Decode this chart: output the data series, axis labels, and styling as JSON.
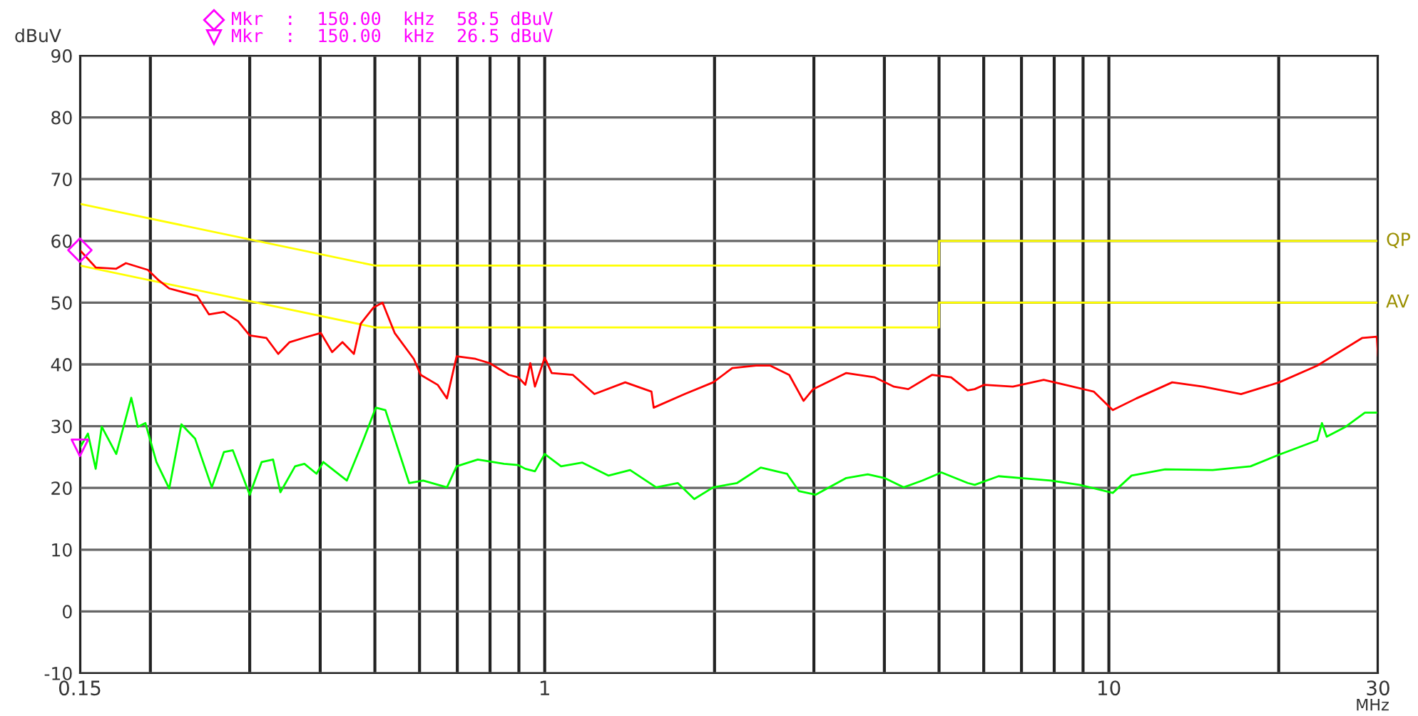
{
  "chart_data": {
    "type": "line",
    "xlabel": "MHz",
    "ylabel": "dBuV",
    "log": "x",
    "grid": true,
    "xlim": [
      0.15,
      30
    ],
    "ylim": [
      -10,
      90
    ],
    "xticks": [
      {
        "value": 0.15,
        "label": "0.15"
      },
      {
        "value": 0.2,
        "label": null
      },
      {
        "value": 0.3,
        "label": null
      },
      {
        "value": 0.4,
        "label": null
      },
      {
        "value": 0.5,
        "label": null
      },
      {
        "value": 0.6,
        "label": null
      },
      {
        "value": 0.7,
        "label": null
      },
      {
        "value": 0.8,
        "label": null
      },
      {
        "value": 0.9,
        "label": null
      },
      1,
      {
        "value": 2,
        "label": null
      },
      {
        "value": 3,
        "label": null
      },
      {
        "value": 4,
        "label": null
      },
      {
        "value": 5,
        "label": null
      },
      {
        "value": 6,
        "label": null
      },
      {
        "value": 7,
        "label": null
      },
      {
        "value": 8,
        "label": null
      },
      {
        "value": 9,
        "label": null
      },
      10,
      {
        "value": 20,
        "label": null
      },
      30
    ],
    "yticks": [
      -10,
      0,
      10,
      20,
      30,
      40,
      50,
      60,
      70,
      80,
      90
    ],
    "annotations": [
      "Mkr  :  150.00  kHz  58.5 dBuV",
      "Mkr  :  150.00  kHz  26.5 dBuV"
    ],
    "series": [
      {
        "name": "QP",
        "color": "#ffff00",
        "x": [
          0.15,
          0.5,
          5,
          5,
          30
        ],
        "values": [
          66,
          56,
          56,
          60,
          60
        ]
      },
      {
        "name": "AV",
        "color": "#ffff00",
        "x": [
          0.15,
          0.5,
          5,
          5,
          30
        ],
        "values": [
          56,
          46,
          46,
          50,
          50
        ]
      },
      {
        "color": "#ff0000",
        "x": [
          0.15,
          0.16,
          0.174,
          0.181,
          0.198,
          0.207,
          0.216,
          0.242,
          0.254,
          0.27,
          0.286,
          0.3,
          0.321,
          0.337,
          0.353,
          0.374,
          0.401,
          0.42,
          0.438,
          0.459,
          0.472,
          0.497,
          0.516,
          0.542,
          0.586,
          0.603,
          0.646,
          0.671,
          0.698,
          0.754,
          0.799,
          0.864,
          0.898,
          0.924,
          0.943,
          0.961,
          1.0,
          1.029,
          1.122,
          1.225,
          1.389,
          1.546,
          1.56,
          1.771,
          1.989,
          2.15,
          2.369,
          2.511,
          2.713,
          2.876,
          2.991,
          3.424,
          3.848,
          4.16,
          4.41,
          4.857,
          5.253,
          5.619,
          5.784,
          6.015,
          6.758,
          7.665,
          8.367,
          9.399,
          10.16,
          11.19,
          12.95,
          14.68,
          17.15,
          20.04,
          23.4,
          28.14,
          29.85,
          30
        ],
        "values": [
          58.5,
          55.7,
          55.5,
          56.4,
          55.3,
          53.6,
          52.3,
          51.1,
          48.1,
          48.5,
          47.0,
          44.7,
          44.3,
          41.7,
          43.6,
          44.3,
          45.1,
          42.0,
          43.6,
          41.7,
          46.6,
          49.2,
          50.0,
          45.1,
          40.9,
          38.3,
          36.7,
          34.5,
          41.3,
          40.9,
          40.2,
          38.3,
          37.9,
          36.7,
          40.2,
          36.4,
          41.1,
          38.6,
          38.3,
          35.2,
          37.1,
          35.6,
          33.0,
          35.2,
          37.1,
          39.4,
          39.8,
          39.8,
          38.3,
          34.1,
          36.0,
          38.6,
          37.9,
          36.4,
          36.0,
          38.3,
          37.9,
          35.8,
          36.0,
          36.7,
          36.4,
          37.5,
          36.7,
          35.6,
          32.6,
          34.5,
          37.1,
          36.4,
          35.2,
          37.1,
          39.8,
          44.3,
          44.5,
          41.4
        ]
      },
      {
        "color": "#00ff00",
        "x": [
          0.15,
          0.155,
          0.16,
          0.164,
          0.174,
          0.185,
          0.19,
          0.196,
          0.205,
          0.216,
          0.227,
          0.24,
          0.257,
          0.27,
          0.28,
          0.3,
          0.315,
          0.33,
          0.34,
          0.361,
          0.375,
          0.394,
          0.405,
          0.446,
          0.473,
          0.502,
          0.522,
          0.575,
          0.609,
          0.671,
          0.698,
          0.761,
          0.847,
          0.898,
          0.924,
          0.961,
          1.0,
          1.069,
          1.166,
          1.298,
          1.417,
          1.576,
          1.721,
          1.841,
          1.989,
          2.193,
          2.415,
          2.688,
          2.821,
          3.021,
          3.424,
          3.738,
          4.002,
          4.325,
          4.674,
          5.05,
          5.619,
          5.784,
          6.375,
          7.163,
          7.891,
          8.868,
          10.16,
          10.97,
          12.58,
          15.27,
          17.83,
          20.04,
          23.4,
          23.86,
          24.33,
          26.28,
          28.43,
          30
        ],
        "values": [
          26.5,
          28.8,
          23.1,
          29.9,
          25.5,
          34.6,
          29.9,
          30.5,
          24.2,
          19.9,
          30.3,
          28.0,
          20.1,
          25.8,
          26.1,
          18.9,
          24.2,
          24.6,
          19.3,
          23.5,
          23.9,
          22.3,
          24.2,
          21.2,
          26.9,
          33.0,
          32.6,
          20.8,
          21.2,
          20.1,
          23.5,
          24.6,
          23.9,
          23.7,
          23.1,
          22.7,
          25.5,
          23.5,
          24.1,
          22.0,
          22.9,
          20.1,
          20.8,
          18.2,
          20.1,
          20.8,
          23.3,
          22.3,
          19.5,
          18.9,
          21.6,
          22.2,
          21.6,
          20.1,
          21.2,
          22.5,
          20.8,
          20.5,
          21.9,
          21.5,
          21.2,
          20.5,
          19.2,
          22.0,
          23.0,
          22.9,
          23.5,
          25.4,
          27.7,
          30.5,
          28.3,
          29.9,
          32.2,
          32.2
        ]
      },
      {
        "type": "scatter",
        "color": "#ff00ff",
        "marker": "diamond",
        "x": [
          0.15
        ],
        "values": [
          58.5
        ]
      },
      {
        "type": "scatter",
        "color": "#ff00ff",
        "marker": "triangle",
        "x": [
          0.15
        ],
        "values": [
          26.5
        ]
      }
    ]
  }
}
